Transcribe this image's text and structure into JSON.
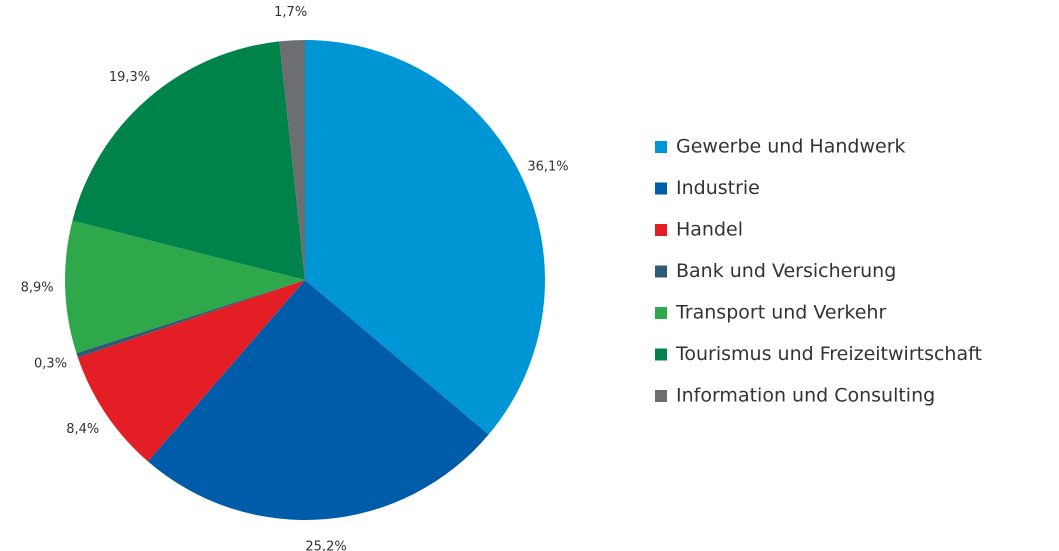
{
  "chart_data": {
    "type": "pie",
    "categories": [
      "Gewerbe und Handwerk",
      "Industrie",
      "Handel",
      "Bank und Versicherung",
      "Transport und Verkehr",
      "Tourismus und Freizeitwirtschaft",
      "Information und Consulting"
    ],
    "values": [
      36.1,
      25.2,
      8.4,
      0.3,
      8.9,
      19.3,
      1.7
    ],
    "value_labels": [
      "36,1%",
      "25,2%",
      "8,4%",
      "0,3%",
      "8,9%",
      "19,3%",
      "1,7%"
    ],
    "colors": [
      "#0096d6",
      "#005ca8",
      "#e31e24",
      "#2d5a74",
      "#2ea84a",
      "#00834a",
      "#6d6e71"
    ],
    "legend": "right"
  }
}
